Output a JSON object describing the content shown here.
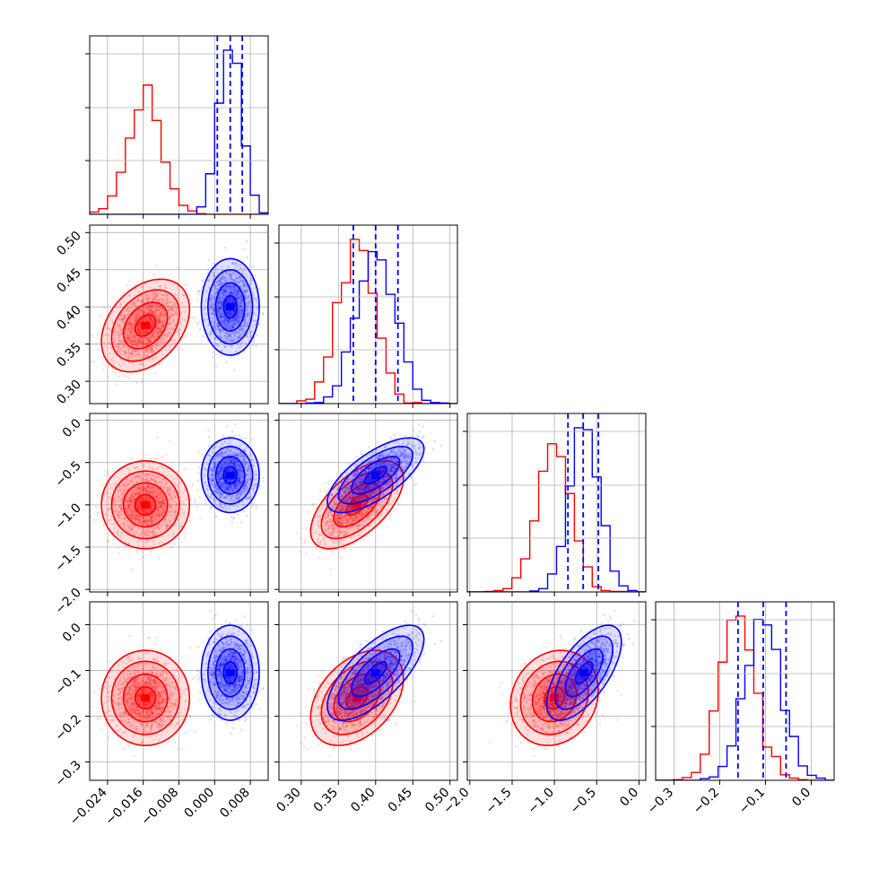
{
  "figure_type": "corner plot",
  "colors": {
    "red": "#ff0000",
    "blue": "#0000ff"
  },
  "chart_data": {
    "type": "scatter",
    "grid": true,
    "series": [
      {
        "color": "#ff0000",
        "mean": [
          -0.0155,
          0.375,
          -1.0,
          -0.16
        ],
        "sd": [
          0.0038,
          0.024,
          0.2,
          0.04
        ],
        "corr": [
          [
            1,
            0.35,
            0,
            0
          ],
          [
            0.35,
            1,
            0.6,
            0.4
          ],
          [
            0,
            0.6,
            1,
            0.15
          ],
          [
            0,
            0.4,
            0.15,
            1
          ]
        ]
      },
      {
        "color": "#0000ff",
        "mean": [
          0.0035,
          0.4,
          -0.65,
          -0.105
        ],
        "sd": [
          0.0025,
          0.025,
          0.17,
          0.04
        ],
        "corr": [
          [
            1,
            0,
            0,
            0
          ],
          [
            0,
            1,
            0.7,
            0.7
          ],
          [
            0,
            0.7,
            1,
            0.65
          ],
          [
            0,
            0.7,
            0.65,
            1
          ]
        ],
        "quantile_lines": [
          [
            0.0006,
            0.0035,
            0.0062
          ],
          [
            0.37,
            0.4,
            0.43
          ],
          [
            -0.84,
            -0.66,
            -0.48
          ],
          [
            -0.16,
            -0.105,
            -0.055
          ]
        ]
      }
    ],
    "parameters": [
      {
        "range": [
          -0.028,
          0.012
        ],
        "ticks": [
          -0.024,
          -0.016,
          -0.008,
          0.0,
          0.008
        ],
        "tick_labels": [
          "−0.024",
          "−0.016",
          "−0.008",
          "0.000",
          "0.008"
        ]
      },
      {
        "range": [
          0.27,
          0.51
        ],
        "ticks": [
          0.3,
          0.35,
          0.4,
          0.45,
          0.5
        ],
        "tick_labels": [
          "0.30",
          "0.35",
          "0.40",
          "0.45",
          "0.50"
        ]
      },
      {
        "range": [
          -2.03,
          0.08
        ],
        "ticks": [
          -2.0,
          -1.5,
          -1.0,
          -0.5,
          0.0
        ],
        "tick_labels": [
          "−2.0",
          "−1.5",
          "−1.0",
          "−0.5",
          "0.0"
        ]
      },
      {
        "range": [
          -0.34,
          0.05
        ],
        "ticks": [
          -0.3,
          -0.2,
          -0.1,
          0.0
        ],
        "tick_labels": [
          "−0.3",
          "−0.2",
          "−0.1",
          "0.0"
        ]
      }
    ]
  }
}
